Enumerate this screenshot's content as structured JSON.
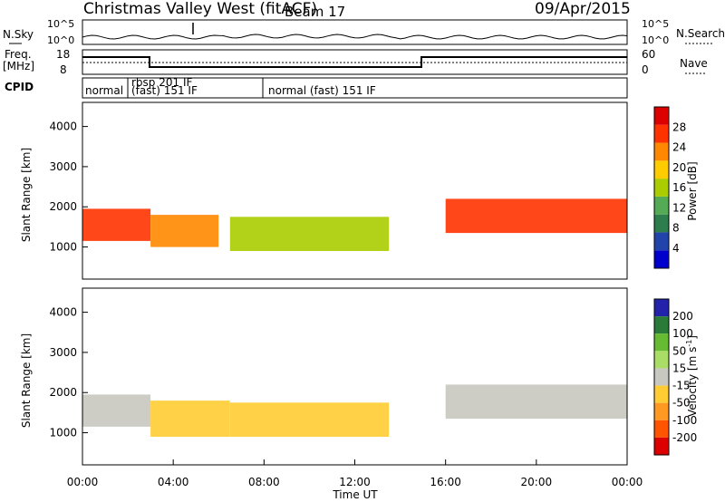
{
  "header": {
    "station": "Christmas Valley West (fitACF)",
    "beam": "Beam 17",
    "date": "09/Apr/2015"
  },
  "noise_panel": {
    "left_label": "N.Sky",
    "left_ticks": [
      "10^5",
      "10^0"
    ],
    "right_label": "N.Search",
    "right_ticks": [
      "10^5",
      "10^0"
    ]
  },
  "freq_panel": {
    "left_label_1": "Freq.",
    "left_label_2": "[MHz]",
    "left_ticks": [
      "18",
      "8"
    ],
    "right_label": "Nave",
    "right_ticks": [
      "60",
      "0"
    ]
  },
  "cpid_panel": {
    "label": "CPID",
    "segments": [
      "normal",
      "rbsp 201 IF",
      "(fast) 151 IF",
      "normal (fast) 151 IF"
    ]
  },
  "colors": {
    "power_scale": [
      "#0000cc",
      "#2244aa",
      "#2d7d4d",
      "#55aa55",
      "#aacc00",
      "#ffcc00",
      "#ff8800",
      "#ff3300",
      "#dd0000"
    ],
    "velocity_scale": [
      "#2222aa",
      "#2a7a3a",
      "#66bb33",
      "#aadd66",
      "#c8c8c0",
      "#ffcc33",
      "#ff9922",
      "#ff5500",
      "#dd0000"
    ],
    "ground_scatter": "#c8c8c0"
  },
  "chart_data": [
    {
      "type": "heatmap",
      "title": "",
      "xlabel": "Time UT",
      "ylabel": "Slant Range [km]",
      "x_ticks": [
        "00:00",
        "04:00",
        "08:00",
        "12:00",
        "16:00",
        "20:00",
        "00:00"
      ],
      "y_ticks": [
        1000,
        2000,
        3000,
        4000
      ],
      "ylim": [
        200,
        4600
      ],
      "colorbar": {
        "label": "Power [dB]",
        "ticks": [
          4,
          8,
          12,
          16,
          20,
          24,
          28
        ],
        "range": [
          0,
          32
        ]
      },
      "echo_bands": [
        {
          "t_start": 0.0,
          "t_end": 3.0,
          "range_low": 1150,
          "range_high": 1950,
          "peak_power": 28
        },
        {
          "t_start": 3.0,
          "t_end": 6.0,
          "range_low": 1000,
          "range_high": 1800,
          "peak_power": 24
        },
        {
          "t_start": 6.5,
          "t_end": 13.5,
          "range_low": 900,
          "range_high": 1750,
          "peak_power": 14
        },
        {
          "t_start": 16.0,
          "t_end": 24.0,
          "range_low": 1350,
          "range_high": 2200,
          "peak_power": 26
        }
      ]
    },
    {
      "type": "heatmap",
      "title": "",
      "xlabel": "Time UT",
      "ylabel": "Slant Range [km]",
      "x_ticks": [
        "00:00",
        "04:00",
        "08:00",
        "12:00",
        "16:00",
        "20:00",
        "00:00"
      ],
      "y_ticks": [
        1000,
        2000,
        3000,
        4000
      ],
      "ylim": [
        200,
        4600
      ],
      "colorbar": {
        "label": "Velocity [m s^-1]",
        "ticks": [
          200,
          100,
          50,
          15,
          -15,
          -50,
          -100,
          -200
        ],
        "range": [
          -250,
          250
        ]
      },
      "echo_bands": [
        {
          "t_start": 0.0,
          "t_end": 3.0,
          "range_low": 1150,
          "range_high": 1950,
          "velocity": 0
        },
        {
          "t_start": 3.0,
          "t_end": 6.5,
          "range_low": 900,
          "range_high": 1800,
          "velocity": -60
        },
        {
          "t_start": 6.5,
          "t_end": 13.5,
          "range_low": 900,
          "range_high": 1750,
          "velocity": -80
        },
        {
          "t_start": 16.0,
          "t_end": 24.0,
          "range_low": 1350,
          "range_high": 2200,
          "velocity": 0
        }
      ]
    }
  ]
}
